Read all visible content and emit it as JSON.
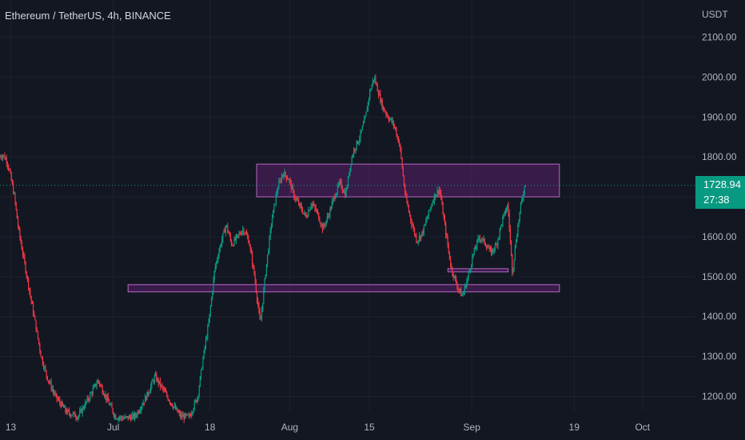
{
  "header": {
    "title": "Ethereum / TetherUS, 4h, BINANCE",
    "currency": "USDT"
  },
  "price_badge": {
    "last_price": "1728.94",
    "countdown": "27:38"
  },
  "colors": {
    "background": "#131722",
    "grid": "#1e222d",
    "axis_text": "#b2b5be",
    "up_candle": "#089981",
    "down_candle": "#f23645",
    "zone_fill": "#9c27b0",
    "zone_border": "#ba68c8",
    "badge": "#089981"
  },
  "chart_data": {
    "type": "candlestick",
    "symbol": "Ethereum / TetherUS",
    "interval": "4h",
    "exchange": "BINANCE",
    "currency": "USDT",
    "ylim": [
      1150,
      2150
    ],
    "yticks": [
      "2100.00",
      "2000.00",
      "1900.00",
      "1800.00",
      "1700.00",
      "1600.00",
      "1500.00",
      "1400.00",
      "1300.00",
      "1200.00"
    ],
    "xticks": [
      {
        "label": "13",
        "day": 0
      },
      {
        "label": "Jul",
        "day": 18
      },
      {
        "label": "18",
        "day": 35
      },
      {
        "label": "Aug",
        "day": 49
      },
      {
        "label": "15",
        "day": 63
      },
      {
        "label": "Sep",
        "day": 81
      },
      {
        "label": "19",
        "day": 99
      },
      {
        "label": "Oct",
        "day": 111
      }
    ],
    "x_range_days": [
      -1.9,
      120.3
    ],
    "last_price": 1728.94,
    "zones": [
      {
        "day_start": 43.2,
        "day_end": 96.4,
        "low": 1700,
        "high": 1782
      },
      {
        "day_start": 76.8,
        "day_end": 87.4,
        "low": 1512,
        "high": 1520
      },
      {
        "day_start": 20.6,
        "day_end": 96.4,
        "low": 1462,
        "high": 1480
      }
    ],
    "price_path": [
      [
        -1.9,
        1800
      ],
      [
        -1.2,
        1805
      ],
      [
        -0.5,
        1790
      ],
      [
        0,
        1760
      ],
      [
        0.8,
        1700
      ],
      [
        1.5,
        1620
      ],
      [
        2.5,
        1540
      ],
      [
        3.5,
        1460
      ],
      [
        4.5,
        1380
      ],
      [
        5.5,
        1300
      ],
      [
        6.5,
        1250
      ],
      [
        8,
        1200
      ],
      [
        10,
        1160
      ],
      [
        12,
        1150
      ],
      [
        14,
        1200
      ],
      [
        15.5,
        1240
      ],
      [
        17,
        1195
      ],
      [
        18.5,
        1150
      ],
      [
        20,
        1145
      ],
      [
        22,
        1150
      ],
      [
        24,
        1200
      ],
      [
        25.5,
        1250
      ],
      [
        27,
        1215
      ],
      [
        28.5,
        1180
      ],
      [
        30,
        1150
      ],
      [
        31.5,
        1148
      ],
      [
        33,
        1200
      ],
      [
        34,
        1300
      ],
      [
        35,
        1390
      ],
      [
        36,
        1520
      ],
      [
        37,
        1580
      ],
      [
        38,
        1630
      ],
      [
        39,
        1580
      ],
      [
        40,
        1600
      ],
      [
        41,
        1620
      ],
      [
        42,
        1590
      ],
      [
        43,
        1500
      ],
      [
        44,
        1380
      ],
      [
        45,
        1520
      ],
      [
        46,
        1640
      ],
      [
        47,
        1720
      ],
      [
        48,
        1760
      ],
      [
        49,
        1745
      ],
      [
        50,
        1700
      ],
      [
        51,
        1675
      ],
      [
        52,
        1650
      ],
      [
        53,
        1685
      ],
      [
        54,
        1660
      ],
      [
        55,
        1620
      ],
      [
        56,
        1655
      ],
      [
        57,
        1700
      ],
      [
        58,
        1735
      ],
      [
        59,
        1705
      ],
      [
        60,
        1795
      ],
      [
        60.5,
        1820
      ],
      [
        61.5,
        1850
      ],
      [
        62.5,
        1900
      ],
      [
        63.2,
        1960
      ],
      [
        64,
        2000
      ],
      [
        64.8,
        1960
      ],
      [
        65.5,
        1925
      ],
      [
        66.5,
        1900
      ],
      [
        67.5,
        1880
      ],
      [
        68.5,
        1830
      ],
      [
        69.5,
        1700
      ],
      [
        70.5,
        1640
      ],
      [
        71.5,
        1590
      ],
      [
        72.5,
        1610
      ],
      [
        73.5,
        1655
      ],
      [
        74.5,
        1700
      ],
      [
        75.5,
        1720
      ],
      [
        76.5,
        1620
      ],
      [
        77.5,
        1525
      ],
      [
        78.5,
        1480
      ],
      [
        79.5,
        1450
      ],
      [
        80.5,
        1500
      ],
      [
        81.5,
        1560
      ],
      [
        82.5,
        1600
      ],
      [
        83.5,
        1585
      ],
      [
        84.5,
        1560
      ],
      [
        85.5,
        1580
      ],
      [
        86.5,
        1640
      ],
      [
        87.5,
        1680
      ],
      [
        88.3,
        1510
      ],
      [
        89,
        1600
      ],
      [
        89.8,
        1680
      ],
      [
        90.5,
        1728.94
      ]
    ]
  }
}
